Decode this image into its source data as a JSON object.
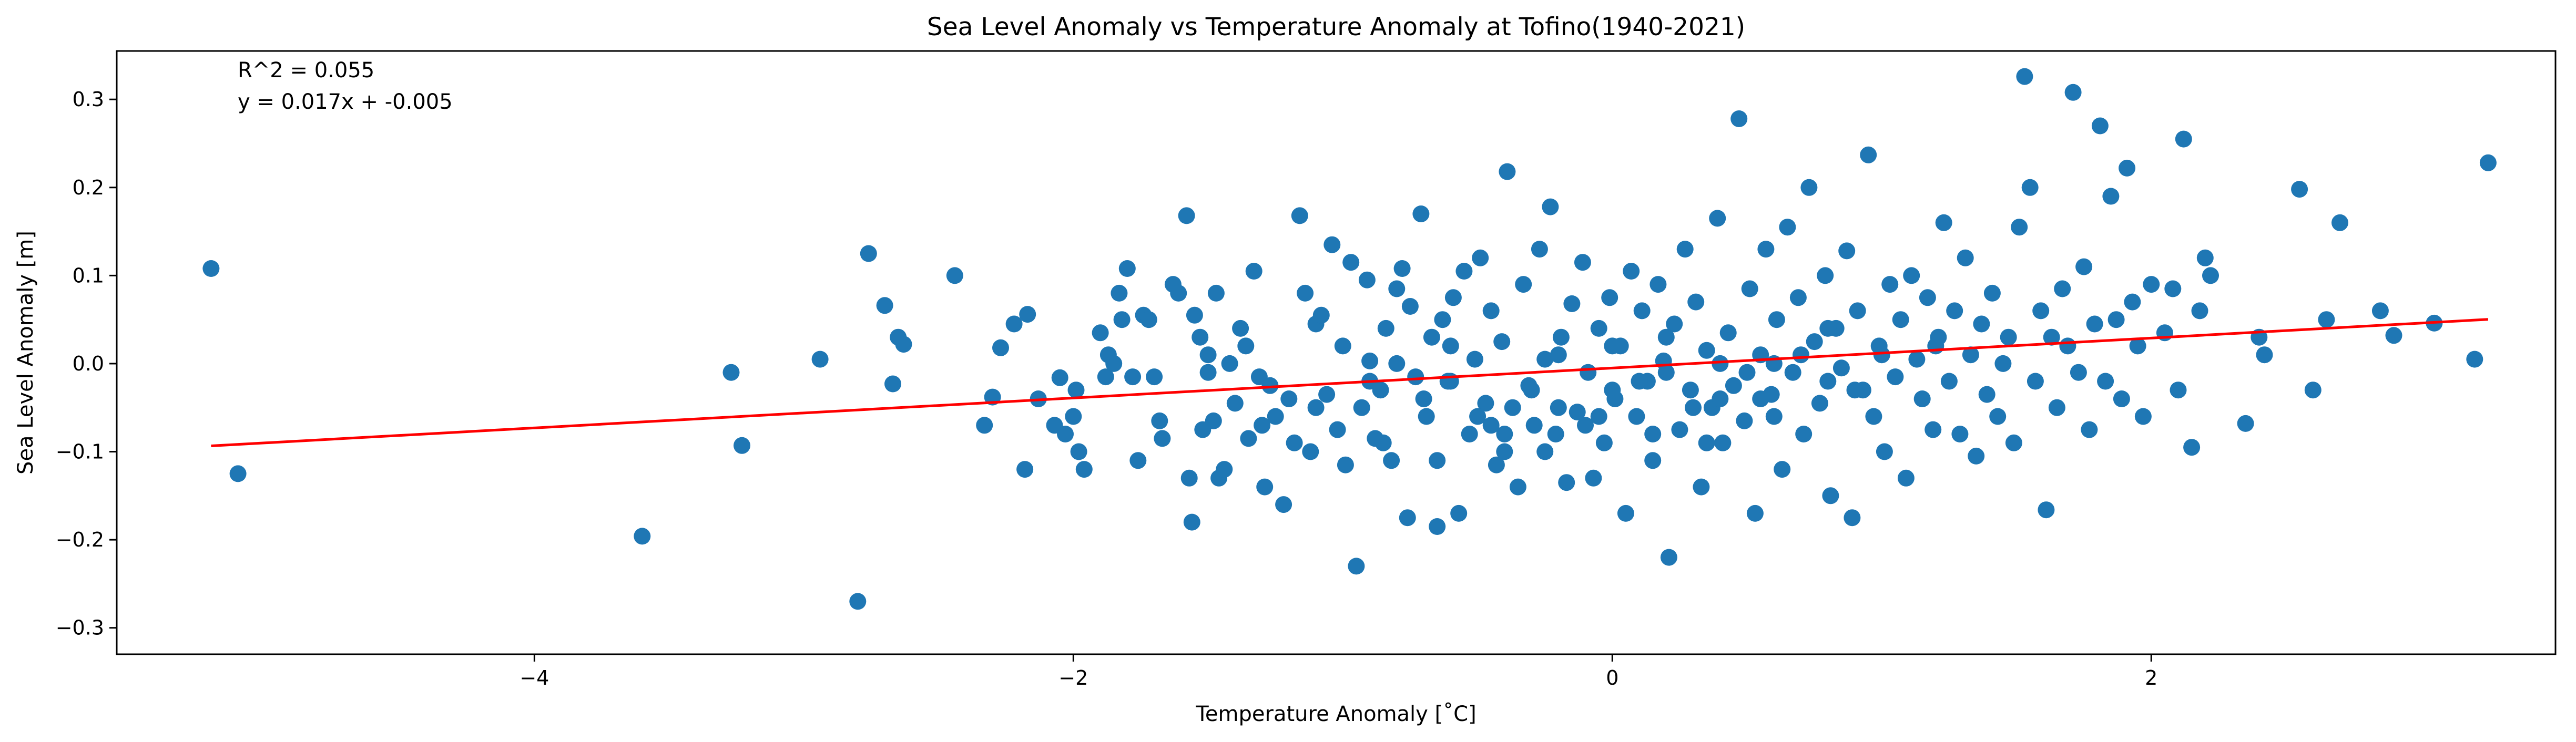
{
  "chart_data": {
    "type": "scatter",
    "title": "Sea Level Anomaly vs Temperature Anomaly at Tofino(1940-2021)",
    "xlabel": "Temperature Anomaly [˚C]",
    "ylabel": "Sea Level Anomaly [m]",
    "xlim": [
      -5.55,
      3.5
    ],
    "ylim": [
      -0.33,
      0.355
    ],
    "xticks": [
      -4,
      -2,
      0,
      2
    ],
    "xtick_labels": [
      "−4",
      "−2",
      "0",
      "2"
    ],
    "yticks": [
      -0.3,
      -0.2,
      -0.1,
      0.0,
      0.1,
      0.2,
      0.3
    ],
    "ytick_labels": [
      "−0.3",
      "−0.2",
      "−0.1",
      "0.0",
      "0.1",
      "0.2",
      "0.3"
    ],
    "grid": false,
    "annotations": [
      "R^2 = 0.055",
      "y = 0.017x + -0.005"
    ],
    "regression": {
      "slope": 0.017,
      "intercept": -0.005,
      "x_range": [
        -5.2,
        3.25
      ],
      "color": "#ff0000"
    },
    "point_color": "#1f77b4",
    "points": [
      [
        -5.2,
        0.108
      ],
      [
        -5.1,
        -0.125
      ],
      [
        -3.6,
        -0.196
      ],
      [
        -3.27,
        -0.01
      ],
      [
        -3.23,
        -0.093
      ],
      [
        -2.94,
        0.005
      ],
      [
        -2.8,
        -0.27
      ],
      [
        -2.76,
        0.125
      ],
      [
        -2.7,
        0.066
      ],
      [
        -2.67,
        -0.023
      ],
      [
        -2.65,
        0.03
      ],
      [
        -2.63,
        0.022
      ],
      [
        -2.44,
        0.1
      ],
      [
        -2.33,
        -0.07
      ],
      [
        -2.3,
        -0.038
      ],
      [
        -2.27,
        0.018
      ],
      [
        -2.22,
        0.045
      ],
      [
        -2.18,
        -0.12
      ],
      [
        -2.17,
        0.056
      ],
      [
        -2.13,
        -0.04
      ],
      [
        -2.07,
        -0.07
      ],
      [
        -2.05,
        -0.016
      ],
      [
        -2.03,
        -0.08
      ],
      [
        -2.0,
        -0.06
      ],
      [
        -1.99,
        -0.03
      ],
      [
        -1.98,
        -0.1
      ],
      [
        -1.96,
        -0.12
      ],
      [
        -1.9,
        0.035
      ],
      [
        -1.88,
        -0.015
      ],
      [
        -1.87,
        0.01
      ],
      [
        -1.85,
        0.0
      ],
      [
        -1.83,
        0.08
      ],
      [
        -1.82,
        0.05
      ],
      [
        -1.8,
        0.108
      ],
      [
        -1.78,
        -0.015
      ],
      [
        -1.76,
        -0.11
      ],
      [
        -1.74,
        0.055
      ],
      [
        -1.72,
        0.05
      ],
      [
        -1.7,
        -0.015
      ],
      [
        -1.68,
        -0.065
      ],
      [
        -1.67,
        -0.085
      ],
      [
        -1.63,
        0.09
      ],
      [
        -1.61,
        0.08
      ],
      [
        -1.58,
        0.168
      ],
      [
        -1.57,
        -0.13
      ],
      [
        -1.56,
        -0.18
      ],
      [
        -1.55,
        0.055
      ],
      [
        -1.53,
        0.03
      ],
      [
        -1.52,
        -0.075
      ],
      [
        -1.5,
        0.01
      ],
      [
        -1.48,
        -0.065
      ],
      [
        -1.47,
        0.08
      ],
      [
        -1.46,
        -0.13
      ],
      [
        -1.44,
        -0.12
      ],
      [
        -1.42,
        0.0
      ],
      [
        -1.4,
        -0.045
      ],
      [
        -1.38,
        0.04
      ],
      [
        -1.36,
        0.02
      ],
      [
        -1.35,
        -0.085
      ],
      [
        -1.33,
        0.105
      ],
      [
        -1.31,
        -0.015
      ],
      [
        -1.29,
        -0.14
      ],
      [
        -1.27,
        -0.025
      ],
      [
        -1.25,
        -0.06
      ],
      [
        -1.22,
        -0.16
      ],
      [
        -1.2,
        -0.04
      ],
      [
        -1.18,
        -0.09
      ],
      [
        -1.16,
        0.168
      ],
      [
        -1.14,
        0.08
      ],
      [
        -1.12,
        -0.1
      ],
      [
        -1.1,
        0.045
      ],
      [
        -1.08,
        0.055
      ],
      [
        -1.06,
        -0.035
      ],
      [
        -1.04,
        0.135
      ],
      [
        -1.02,
        -0.075
      ],
      [
        -1.0,
        0.02
      ],
      [
        -0.99,
        -0.115
      ],
      [
        -0.97,
        0.115
      ],
      [
        -0.95,
        -0.23
      ],
      [
        -0.93,
        -0.05
      ],
      [
        -0.91,
        0.095
      ],
      [
        -0.9,
        0.003
      ],
      [
        -0.88,
        -0.085
      ],
      [
        -0.86,
        -0.03
      ],
      [
        -0.84,
        0.04
      ],
      [
        -0.82,
        -0.11
      ],
      [
        -0.8,
        0.085
      ],
      [
        -0.78,
        0.108
      ],
      [
        -0.76,
        -0.175
      ],
      [
        -0.75,
        0.065
      ],
      [
        -0.73,
        -0.015
      ],
      [
        -0.71,
        0.17
      ],
      [
        -0.69,
        -0.06
      ],
      [
        -0.67,
        0.03
      ],
      [
        -0.65,
        -0.185
      ],
      [
        -0.63,
        0.05
      ],
      [
        -0.61,
        -0.02
      ],
      [
        -0.59,
        0.075
      ],
      [
        -0.57,
        -0.17
      ],
      [
        -0.55,
        0.105
      ],
      [
        -0.53,
        -0.08
      ],
      [
        -0.51,
        0.005
      ],
      [
        -0.49,
        0.12
      ],
      [
        -0.47,
        -0.045
      ],
      [
        -0.45,
        0.06
      ],
      [
        -0.43,
        -0.115
      ],
      [
        -0.41,
        0.025
      ],
      [
        -0.39,
        0.218
      ],
      [
        -0.37,
        -0.05
      ],
      [
        -0.35,
        -0.14
      ],
      [
        -0.33,
        0.09
      ],
      [
        -0.31,
        -0.025
      ],
      [
        -0.29,
        -0.07
      ],
      [
        -0.27,
        0.13
      ],
      [
        -0.25,
        0.005
      ],
      [
        -0.23,
        0.178
      ],
      [
        -0.21,
        -0.08
      ],
      [
        -0.19,
        0.03
      ],
      [
        -0.17,
        -0.135
      ],
      [
        -0.15,
        0.068
      ],
      [
        -0.13,
        -0.055
      ],
      [
        -0.11,
        0.115
      ],
      [
        -0.09,
        -0.01
      ],
      [
        -0.07,
        -0.13
      ],
      [
        -0.05,
        0.04
      ],
      [
        -0.03,
        -0.09
      ],
      [
        -0.01,
        0.075
      ],
      [
        0.01,
        -0.04
      ],
      [
        0.03,
        0.02
      ],
      [
        0.05,
        -0.17
      ],
      [
        0.07,
        0.105
      ],
      [
        0.09,
        -0.06
      ],
      [
        0.11,
        0.06
      ],
      [
        0.13,
        -0.02
      ],
      [
        0.15,
        -0.11
      ],
      [
        0.17,
        0.09
      ],
      [
        0.19,
        0.003
      ],
      [
        0.21,
        -0.22
      ],
      [
        0.23,
        0.045
      ],
      [
        0.25,
        -0.075
      ],
      [
        0.27,
        0.13
      ],
      [
        0.29,
        -0.03
      ],
      [
        0.31,
        0.07
      ],
      [
        0.33,
        -0.14
      ],
      [
        0.35,
        0.015
      ],
      [
        0.37,
        -0.05
      ],
      [
        0.39,
        0.165
      ],
      [
        0.41,
        -0.09
      ],
      [
        0.43,
        0.035
      ],
      [
        0.45,
        -0.025
      ],
      [
        0.47,
        0.278
      ],
      [
        0.49,
        -0.065
      ],
      [
        0.51,
        0.085
      ],
      [
        0.53,
        -0.17
      ],
      [
        0.55,
        0.01
      ],
      [
        0.57,
        0.13
      ],
      [
        0.59,
        -0.035
      ],
      [
        0.61,
        0.05
      ],
      [
        0.63,
        -0.12
      ],
      [
        0.65,
        0.155
      ],
      [
        0.67,
        -0.01
      ],
      [
        0.69,
        0.075
      ],
      [
        0.71,
        -0.08
      ],
      [
        0.73,
        0.2
      ],
      [
        0.75,
        0.025
      ],
      [
        0.77,
        -0.045
      ],
      [
        0.79,
        0.1
      ],
      [
        0.81,
        -0.15
      ],
      [
        0.83,
        0.04
      ],
      [
        0.85,
        -0.005
      ],
      [
        0.87,
        0.128
      ],
      [
        0.89,
        -0.175
      ],
      [
        0.91,
        0.06
      ],
      [
        0.93,
        -0.03
      ],
      [
        0.95,
        0.237
      ],
      [
        0.97,
        -0.06
      ],
      [
        0.99,
        0.02
      ],
      [
        1.01,
        -0.1
      ],
      [
        1.03,
        0.09
      ],
      [
        1.05,
        -0.015
      ],
      [
        1.07,
        0.05
      ],
      [
        1.09,
        -0.13
      ],
      [
        1.11,
        0.1
      ],
      [
        1.13,
        0.005
      ],
      [
        1.15,
        -0.04
      ],
      [
        1.17,
        0.075
      ],
      [
        1.19,
        -0.075
      ],
      [
        1.21,
        0.03
      ],
      [
        1.23,
        0.16
      ],
      [
        1.25,
        -0.02
      ],
      [
        1.27,
        0.06
      ],
      [
        1.29,
        -0.08
      ],
      [
        1.31,
        0.12
      ],
      [
        1.33,
        0.01
      ],
      [
        1.35,
        -0.105
      ],
      [
        1.37,
        0.045
      ],
      [
        1.39,
        -0.035
      ],
      [
        1.41,
        0.08
      ],
      [
        1.43,
        -0.06
      ],
      [
        1.45,
        0.0
      ],
      [
        1.47,
        0.03
      ],
      [
        1.49,
        -0.09
      ],
      [
        1.51,
        0.155
      ],
      [
        1.53,
        0.326
      ],
      [
        1.55,
        0.2
      ],
      [
        1.57,
        -0.02
      ],
      [
        1.59,
        0.06
      ],
      [
        1.61,
        -0.166
      ],
      [
        1.63,
        0.03
      ],
      [
        1.65,
        -0.05
      ],
      [
        1.67,
        0.085
      ],
      [
        1.69,
        0.02
      ],
      [
        1.71,
        0.308
      ],
      [
        1.73,
        -0.01
      ],
      [
        1.75,
        0.11
      ],
      [
        1.77,
        -0.075
      ],
      [
        1.79,
        0.045
      ],
      [
        1.81,
        0.27
      ],
      [
        1.83,
        -0.02
      ],
      [
        1.85,
        0.19
      ],
      [
        1.87,
        0.05
      ],
      [
        1.89,
        -0.04
      ],
      [
        1.91,
        0.222
      ],
      [
        1.93,
        0.07
      ],
      [
        1.95,
        0.02
      ],
      [
        1.97,
        -0.06
      ],
      [
        2.0,
        0.09
      ],
      [
        2.05,
        0.035
      ],
      [
        2.08,
        0.085
      ],
      [
        2.1,
        -0.03
      ],
      [
        2.12,
        0.255
      ],
      [
        2.15,
        -0.095
      ],
      [
        2.18,
        0.06
      ],
      [
        2.2,
        0.12
      ],
      [
        2.22,
        0.1
      ],
      [
        2.35,
        -0.068
      ],
      [
        2.4,
        0.03
      ],
      [
        2.42,
        0.01
      ],
      [
        2.55,
        0.198
      ],
      [
        2.6,
        -0.03
      ],
      [
        2.65,
        0.05
      ],
      [
        2.7,
        0.16
      ],
      [
        2.85,
        0.06
      ],
      [
        2.9,
        0.032
      ],
      [
        3.05,
        0.046
      ],
      [
        3.2,
        0.005
      ],
      [
        3.25,
        0.228
      ],
      [
        -0.6,
        -0.02
      ],
      [
        -0.4,
        -0.08
      ],
      [
        -0.2,
        -0.05
      ],
      [
        0.0,
        -0.03
      ],
      [
        0.2,
        -0.01
      ],
      [
        0.4,
        -0.04
      ],
      [
        0.6,
        0.0
      ],
      [
        0.8,
        -0.02
      ],
      [
        1.0,
        0.01
      ],
      [
        -0.5,
        -0.06
      ],
      [
        -0.3,
        -0.03
      ],
      [
        -0.1,
        -0.07
      ],
      [
        0.1,
        -0.02
      ],
      [
        0.3,
        -0.05
      ],
      [
        0.5,
        -0.01
      ],
      [
        0.7,
        0.01
      ],
      [
        0.9,
        -0.03
      ],
      [
        -0.7,
        -0.04
      ],
      [
        -0.9,
        -0.02
      ],
      [
        -1.1,
        -0.05
      ],
      [
        -0.8,
        0.0
      ],
      [
        -0.6,
        0.02
      ],
      [
        -0.4,
        -0.1
      ],
      [
        -0.2,
        0.01
      ],
      [
        0.0,
        0.02
      ],
      [
        0.2,
        0.03
      ],
      [
        0.4,
        0.0
      ],
      [
        0.6,
        -0.06
      ],
      [
        0.8,
        0.04
      ],
      [
        1.2,
        0.02
      ],
      [
        -1.3,
        -0.07
      ],
      [
        -1.5,
        -0.01
      ],
      [
        -0.85,
        -0.09
      ],
      [
        -0.65,
        -0.11
      ],
      [
        -0.45,
        -0.07
      ],
      [
        -0.25,
        -0.1
      ],
      [
        -0.05,
        -0.06
      ],
      [
        0.15,
        -0.08
      ],
      [
        0.35,
        -0.09
      ],
      [
        0.55,
        -0.04
      ]
    ]
  }
}
